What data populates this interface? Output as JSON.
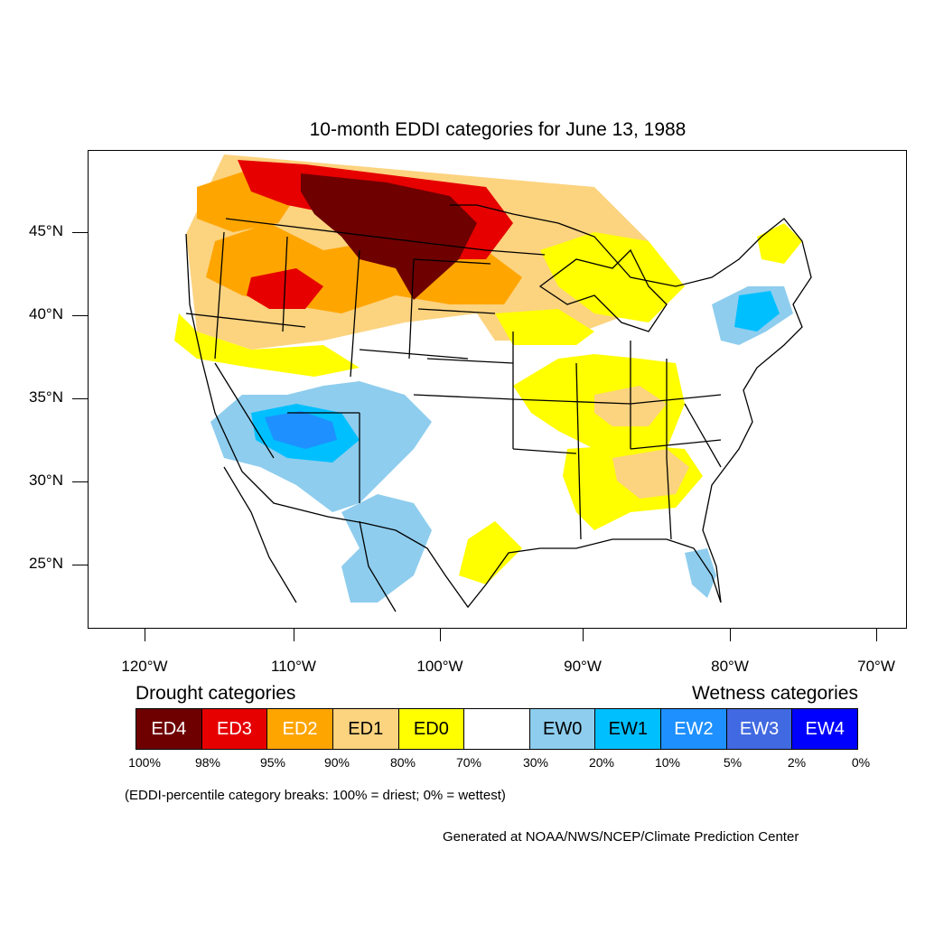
{
  "title": "10-month EDDI categories for June 13, 1988",
  "lat_labels": [
    "45°N",
    "40°N",
    "35°N",
    "30°N",
    "25°N"
  ],
  "lon_labels": [
    "120°W",
    "110°W",
    "100°W",
    "90°W",
    "80°W",
    "70°W"
  ],
  "legend": {
    "drought_heading": "Drought categories",
    "wetness_heading": "Wetness categories",
    "categories": [
      {
        "label": "ED4",
        "color": "#6e0000",
        "text_color": "#ffffff"
      },
      {
        "label": "ED3",
        "color": "#e60000",
        "text_color": "#ffffff"
      },
      {
        "label": "ED2",
        "color": "#ffa500",
        "text_color": "#ffffff"
      },
      {
        "label": "ED1",
        "color": "#fcd37f",
        "text_color": "#000000"
      },
      {
        "label": "ED0",
        "color": "#ffff00",
        "text_color": "#000000"
      },
      {
        "label": "",
        "color": "#ffffff",
        "text_color": "#000000"
      },
      {
        "label": "EW0",
        "color": "#8ecdee",
        "text_color": "#000000"
      },
      {
        "label": "EW1",
        "color": "#00bfff",
        "text_color": "#000000"
      },
      {
        "label": "EW2",
        "color": "#1e90ff",
        "text_color": "#ffffff"
      },
      {
        "label": "EW3",
        "color": "#4169e1",
        "text_color": "#ffffff"
      },
      {
        "label": "EW4",
        "color": "#0000ff",
        "text_color": "#ffffff"
      }
    ],
    "breaks": [
      "100%",
      "98%",
      "95%",
      "90%",
      "80%",
      "70%",
      "30%",
      "20%",
      "10%",
      "5%",
      "2%",
      "0%"
    ]
  },
  "note": "(EDDI-percentile category breaks: 100% = driest; 0% = wettest)",
  "credit": "Generated at NOAA/NWS/NCEP/Climate Prediction Center"
}
